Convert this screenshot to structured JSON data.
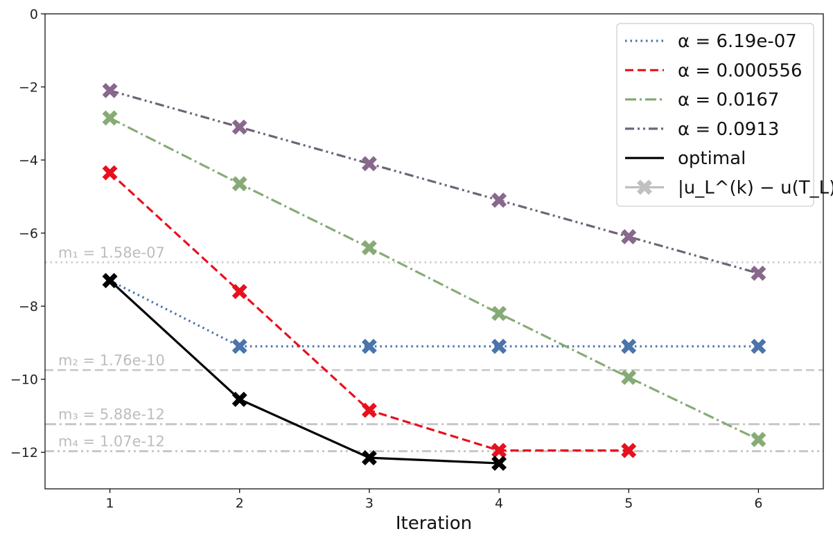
{
  "chart_data": {
    "type": "line",
    "xlabel": "Iteration",
    "ylabel": "",
    "xlim": [
      0.5,
      6.5
    ],
    "ylim": [
      -13,
      0
    ],
    "x_ticks": [
      1,
      2,
      3,
      4,
      5,
      6
    ],
    "y_ticks": [
      0,
      -2,
      -4,
      -6,
      -8,
      -10,
      -12
    ],
    "y_tick_labels": [
      "0",
      "−2",
      "−4",
      "−6",
      "−8",
      "−10",
      "−12"
    ],
    "grid": false,
    "legend_position": "top-right",
    "series": [
      {
        "name": "α = 6.19e-07",
        "legend_label": "α = 6.19e-07",
        "color": "#4a74aa",
        "line_style": "dotted",
        "marker": "X",
        "x": [
          1,
          2,
          3,
          4,
          5,
          6
        ],
        "y": [
          -7.3,
          -9.1,
          -9.1,
          -9.1,
          -9.1,
          -9.1
        ]
      },
      {
        "name": "α = 0.000556",
        "legend_label": "α = 0.000556",
        "color": "#e8101e",
        "line_style": "dashed",
        "marker": "X",
        "x": [
          1,
          2,
          3,
          4,
          5
        ],
        "y": [
          -4.35,
          -7.6,
          -10.85,
          -11.95,
          -11.95
        ]
      },
      {
        "name": "α = 0.0167",
        "legend_label": "α = 0.0167",
        "color": "#86ab75",
        "line_style": "dashdot",
        "marker": "X",
        "x": [
          1,
          2,
          3,
          4,
          5,
          6
        ],
        "y": [
          -2.85,
          -4.65,
          -6.4,
          -8.2,
          -9.95,
          -11.65
        ]
      },
      {
        "name": "α = 0.0913",
        "legend_label": "α = 0.0913",
        "color": "#6f6377",
        "marker_color": "#88688c",
        "line_style": "dashdotdot",
        "marker": "X",
        "x": [
          1,
          2,
          3,
          4,
          5,
          6
        ],
        "y": [
          -2.1,
          -3.1,
          -4.1,
          -5.1,
          -6.1,
          -7.1
        ]
      },
      {
        "name": "optimal",
        "legend_label": "optimal",
        "color": "#000000",
        "line_style": "solid",
        "marker": "X",
        "x": [
          1,
          2,
          3,
          4
        ],
        "y": [
          -7.3,
          -10.55,
          -12.15,
          -12.3
        ]
      }
    ],
    "legend_extra": {
      "label": "|u_L^(k) − u(T_L)|_∞",
      "color": "#c0c0c0"
    },
    "reference_lines": [
      {
        "label": "m₁ = 1.58e-07",
        "y": -6.8,
        "line_style": "dotted",
        "color": "#cfcfcf"
      },
      {
        "label": "m₂ = 1.76e-10",
        "y": -9.75,
        "line_style": "dashed",
        "color": "#cfcfcf"
      },
      {
        "label": "m₃ = 5.88e-12",
        "y": -11.23,
        "line_style": "dashdot",
        "color": "#c7c7c7"
      },
      {
        "label": "m₄ = 1.07e-12",
        "y": -11.97,
        "line_style": "dashdotdot",
        "color": "#c7c7c7"
      }
    ]
  }
}
